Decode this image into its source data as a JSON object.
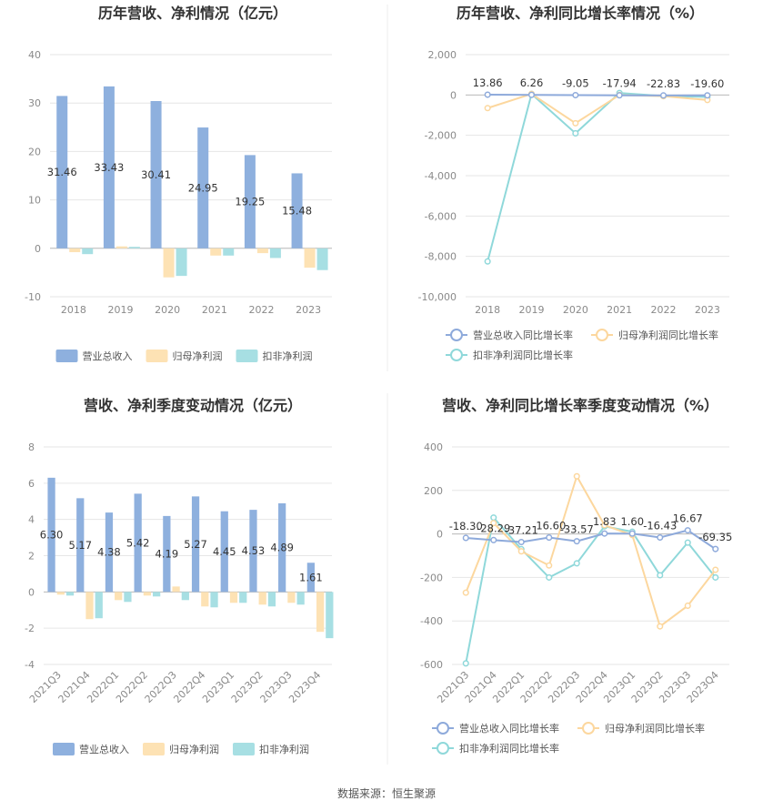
{
  "source_label": "数据来源：恒生聚源",
  "colors": {
    "revenue": "#8eb0de",
    "net_profit": "#fde2b4",
    "deducted_profit": "#a7dfe3",
    "revenue_line": "#8eaadb",
    "net_line": "#fcd79e",
    "deducted_line": "#8fd8da"
  },
  "chart_data": [
    {
      "type": "bar",
      "title": "历年营收、净利情况（亿元）",
      "categories": [
        "2018",
        "2019",
        "2020",
        "2021",
        "2022",
        "2023"
      ],
      "ylim": [
        -10,
        40
      ],
      "yticks": [
        40,
        30,
        20,
        10,
        0,
        -10
      ],
      "grid": true,
      "legend_position": "bottom",
      "series": [
        {
          "name": "营业总收入",
          "values": [
            31.46,
            33.43,
            30.41,
            24.95,
            19.25,
            15.48
          ],
          "labeled": true
        },
        {
          "name": "归母净利润",
          "values": [
            -0.8,
            0.4,
            -6.0,
            -1.5,
            -1.0,
            -4.0
          ]
        },
        {
          "name": "扣非净利润",
          "values": [
            -1.2,
            0.3,
            -5.7,
            -1.5,
            -2.0,
            -4.5
          ]
        }
      ]
    },
    {
      "type": "line",
      "title": "历年营收、净利同比增长率情况（%）",
      "categories": [
        "2018",
        "2019",
        "2020",
        "2021",
        "2022",
        "2023"
      ],
      "ylim": [
        -10000,
        2000
      ],
      "yticks": [
        2000,
        0,
        -2000,
        -4000,
        -6000,
        -8000,
        -10000
      ],
      "ytick_labels": [
        "2,000",
        "0",
        "-2,000",
        "-4,000",
        "-6,000",
        "-8,000",
        "-10,000"
      ],
      "grid": true,
      "legend_position": "bottom",
      "series": [
        {
          "name": "营业总收入同比增长率",
          "values": [
            13.86,
            6.26,
            -9.05,
            -17.94,
            -22.83,
            -19.6
          ],
          "labels": [
            "13.86",
            "6.26",
            "-9.05",
            "-17.94",
            "-22.83",
            "-19.60"
          ]
        },
        {
          "name": "归母净利润同比增长率",
          "values": [
            -650,
            50,
            -1400,
            0,
            -60,
            -250
          ]
        },
        {
          "name": "扣非净利润同比增长率",
          "values": [
            -8250,
            50,
            -1900,
            100,
            -50,
            -100
          ]
        }
      ]
    },
    {
      "type": "bar",
      "title": "营收、净利季度变动情况（亿元）",
      "categories": [
        "2021Q3",
        "2021Q4",
        "2022Q1",
        "2022Q2",
        "2022Q3",
        "2022Q4",
        "2023Q1",
        "2023Q2",
        "2023Q3",
        "2023Q4"
      ],
      "ylim": [
        -4,
        8
      ],
      "yticks": [
        8,
        6,
        4,
        2,
        0,
        -2,
        -4
      ],
      "grid": true,
      "legend_position": "bottom",
      "series": [
        {
          "name": "营业总收入",
          "values": [
            6.3,
            5.17,
            4.38,
            5.42,
            4.19,
            5.27,
            4.45,
            4.53,
            4.89,
            1.61
          ],
          "labeled": true
        },
        {
          "name": "归母净利润",
          "values": [
            -0.15,
            -1.5,
            -0.45,
            -0.2,
            0.3,
            -0.8,
            -0.6,
            -0.7,
            -0.6,
            -2.2
          ]
        },
        {
          "name": "扣非净利润",
          "values": [
            -0.2,
            -1.45,
            -0.55,
            -0.25,
            -0.45,
            -0.85,
            -0.6,
            -0.8,
            -0.7,
            -2.55
          ]
        }
      ]
    },
    {
      "type": "line",
      "title": "营收、净利同比增长率季度变动情况（%）",
      "categories": [
        "2021Q3",
        "2021Q4",
        "2022Q1",
        "2022Q2",
        "2022Q3",
        "2022Q4",
        "2023Q1",
        "2023Q2",
        "2023Q3",
        "2023Q4"
      ],
      "ylim": [
        -600,
        400
      ],
      "yticks": [
        400,
        200,
        0,
        -200,
        -400,
        -600
      ],
      "grid": true,
      "legend_position": "bottom",
      "series": [
        {
          "name": "营业总收入同比增长率",
          "values": [
            -18.3,
            -28.29,
            -37.21,
            -16.6,
            -33.57,
            1.83,
            1.6,
            -16.43,
            16.67,
            -69.35
          ],
          "labels": [
            "-18.30",
            "-28.29",
            "-37.21",
            "-16.60",
            "-33.57",
            "1.83",
            "1.60",
            "-16.43",
            "16.67",
            "-69.35"
          ]
        },
        {
          "name": "归母净利润同比增长率",
          "values": [
            -270,
            50,
            -80,
            -145,
            265,
            40,
            -5,
            -425,
            -330,
            -165
          ]
        },
        {
          "name": "扣非净利润同比增长率",
          "values": [
            -595,
            75,
            -70,
            -200,
            -135,
            35,
            10,
            -190,
            -40,
            -200
          ]
        }
      ]
    }
  ]
}
